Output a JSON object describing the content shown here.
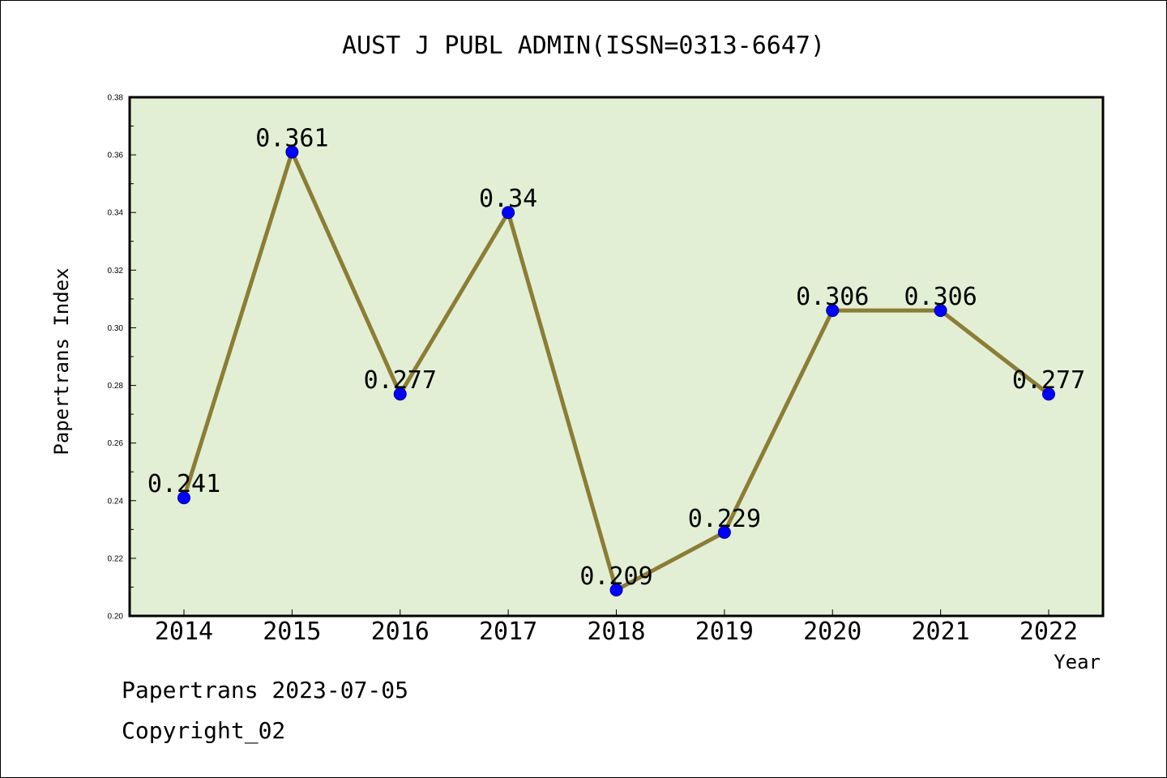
{
  "chart_data": {
    "type": "line",
    "title": "AUST J PUBL ADMIN(ISSN=0313-6647)",
    "xlabel": "Year",
    "ylabel": "Papertrans Index",
    "categories": [
      "2014",
      "2015",
      "2016",
      "2017",
      "2018",
      "2019",
      "2020",
      "2021",
      "2022"
    ],
    "values": [
      0.241,
      0.361,
      0.277,
      0.34,
      0.209,
      0.229,
      0.306,
      0.306,
      0.277
    ],
    "data_labels": [
      "0.241",
      "0.361",
      "0.277",
      "0.34",
      "0.209",
      "0.229",
      "0.306",
      "0.306",
      "0.277"
    ],
    "ylim": [
      0.2,
      0.38
    ],
    "yticks": [
      "0.20",
      "0.22",
      "0.24",
      "0.26",
      "0.28",
      "0.30",
      "0.32",
      "0.34",
      "0.36",
      "0.38"
    ],
    "grid": false,
    "legend": "none",
    "colors": {
      "plot_background": "#e2efd4",
      "line": "#8b7d35",
      "marker": "#0000ff"
    }
  },
  "footer": {
    "line1": "Papertrans 2023-07-05",
    "line2": "Copyright_02"
  }
}
